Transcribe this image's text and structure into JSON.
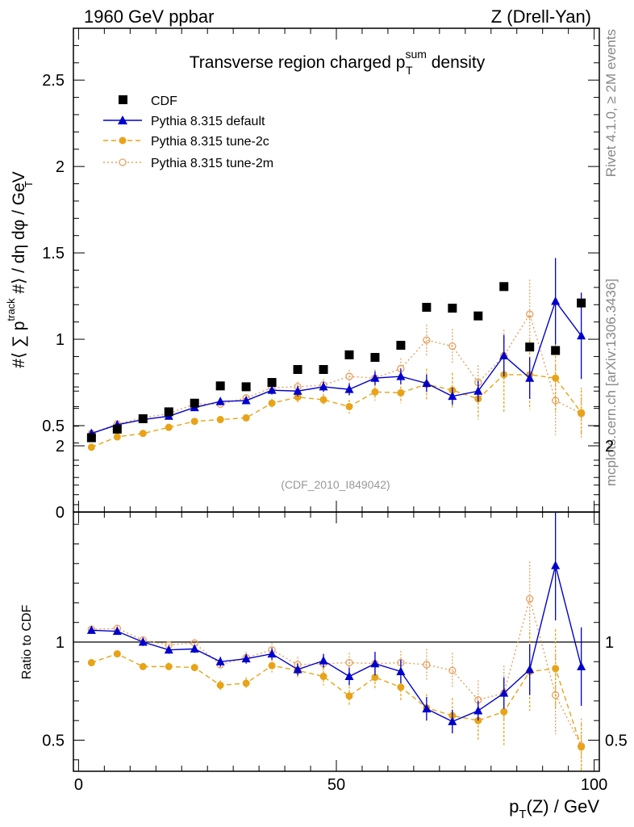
{
  "header": {
    "left": "1960 GeV ppbar",
    "right": "Z (Drell-Yan)"
  },
  "side_labels": {
    "rivet": "Rivet 4.1.0, ≥ 2M events",
    "mcplots": "mcplots.cern.ch [arXiv:1306.3436]"
  },
  "chart_data": [
    {
      "type": "scatter",
      "title": {
        "pre": "Transverse region charged p",
        "sup": "sum",
        "sub": "T",
        "post": " density"
      },
      "ylabel": {
        "p1": "#⟨ ∑ p",
        "sup": "track",
        "sub": "T",
        "p2": " #⟩ / dη dφ / GeV"
      },
      "watermark": "(CDF_2010_I849042)",
      "xlim": [
        -1,
        101
      ],
      "ylim": [
        0,
        2.8
      ],
      "y_ticks": [
        0,
        0.5,
        1,
        1.5,
        2,
        2.5
      ],
      "y_tick_labels": [
        "0",
        "0.5",
        "1",
        "1.5",
        "2",
        "2.5"
      ],
      "x": [
        2.5,
        7.5,
        12.5,
        17.5,
        22.5,
        27.5,
        32.5,
        37.5,
        42.5,
        47.5,
        52.5,
        57.5,
        62.5,
        67.5,
        72.5,
        77.5,
        82.5,
        87.5,
        92.5,
        97.5
      ],
      "series": [
        {
          "name": "CDF",
          "style": "data",
          "color": "#000000",
          "values": [
            0.43,
            0.48,
            0.54,
            0.58,
            0.63,
            0.73,
            0.725,
            0.75,
            0.825,
            0.825,
            0.91,
            0.895,
            0.965,
            1.185,
            1.18,
            1.135,
            1.305,
            0.955,
            0.935,
            1.21
          ],
          "errors": [
            0.01,
            0.01,
            0.01,
            0.01,
            0.01,
            0.01,
            0.01,
            0.01,
            0.01,
            0.01,
            0.01,
            0.01,
            0.01,
            0.01,
            0.01,
            0.01,
            0.01,
            0.01,
            0.01,
            0.01
          ]
        },
        {
          "name": "Pythia 8.315 default",
          "style": "default",
          "color": "#0000cc",
          "values": [
            0.455,
            0.505,
            0.535,
            0.555,
            0.605,
            0.64,
            0.645,
            0.705,
            0.7,
            0.725,
            0.71,
            0.775,
            0.785,
            0.745,
            0.67,
            0.7,
            0.905,
            0.775,
            1.22,
            1.02
          ],
          "errors": [
            0.01,
            0.01,
            0.01,
            0.01,
            0.015,
            0.02,
            0.02,
            0.025,
            0.03,
            0.03,
            0.035,
            0.04,
            0.045,
            0.05,
            0.05,
            0.06,
            0.12,
            0.12,
            0.25,
            0.25
          ]
        },
        {
          "name": "Pythia 8.315 tune-2c",
          "style": "tune2c",
          "color": "#e8a317",
          "values": [
            0.375,
            0.435,
            0.455,
            0.49,
            0.525,
            0.535,
            0.545,
            0.63,
            0.665,
            0.65,
            0.61,
            0.695,
            0.69,
            0.74,
            0.705,
            0.655,
            0.795,
            0.795,
            0.775,
            0.575
          ],
          "errors": [
            0.01,
            0.01,
            0.01,
            0.01,
            0.015,
            0.015,
            0.02,
            0.025,
            0.03,
            0.035,
            0.04,
            0.05,
            0.06,
            0.09,
            0.1,
            0.12,
            0.22,
            0.2,
            0.2,
            0.13
          ]
        },
        {
          "name": "Pythia 8.315 tune-2m",
          "style": "tune2m",
          "color": "#e8a060",
          "values": [
            0.455,
            0.51,
            0.545,
            0.57,
            0.625,
            0.625,
            0.66,
            0.72,
            0.725,
            0.735,
            0.785,
            0.775,
            0.83,
            0.995,
            0.96,
            0.75,
            0.905,
            1.145,
            0.645,
            0.57
          ],
          "errors": [
            0.01,
            0.01,
            0.01,
            0.015,
            0.015,
            0.02,
            0.02,
            0.025,
            0.03,
            0.035,
            0.04,
            0.05,
            0.06,
            0.09,
            0.1,
            0.1,
            0.15,
            0.2,
            0.2,
            0.15
          ]
        }
      ]
    },
    {
      "type": "scatter",
      "ylabel": "Ratio to CDF",
      "xlabel": {
        "p1": "p",
        "sub": "T",
        "p2": "(Z) / GeV"
      },
      "xlim": [
        -1,
        101
      ],
      "ylim": [
        0.35,
        2.35
      ],
      "y_ticks": [
        0.5,
        1,
        2
      ],
      "y_tick_labels": [
        "0.5",
        "1",
        "2"
      ],
      "x_ticks": [
        0,
        50,
        100
      ],
      "x_tick_labels": [
        "0",
        "50",
        "100"
      ],
      "x": [
        2.5,
        7.5,
        12.5,
        17.5,
        22.5,
        27.5,
        32.5,
        37.5,
        42.5,
        47.5,
        52.5,
        57.5,
        62.5,
        67.5,
        72.5,
        77.5,
        82.5,
        87.5,
        92.5,
        97.5
      ],
      "series": [
        {
          "name": "Pythia 8.315 default",
          "style": "default",
          "color": "#0000cc",
          "values": [
            1.06,
            1.055,
            1.0,
            0.96,
            0.965,
            0.9,
            0.915,
            0.94,
            0.86,
            0.905,
            0.825,
            0.89,
            0.85,
            0.66,
            0.595,
            0.65,
            0.74,
            0.86,
            1.39,
            0.875
          ],
          "errors": [
            0.01,
            0.015,
            0.02,
            0.02,
            0.02,
            0.025,
            0.025,
            0.03,
            0.03,
            0.035,
            0.045,
            0.06,
            0.06,
            0.06,
            0.06,
            0.05,
            0.08,
            0.13,
            0.28,
            0.2
          ]
        },
        {
          "name": "Pythia 8.315 tune-2c",
          "style": "tune2c",
          "color": "#e8a317",
          "values": [
            0.895,
            0.94,
            0.875,
            0.875,
            0.87,
            0.78,
            0.79,
            0.88,
            0.855,
            0.825,
            0.725,
            0.82,
            0.77,
            0.665,
            0.625,
            0.6,
            0.645,
            0.85,
            0.865,
            0.465
          ],
          "errors": [
            0.01,
            0.015,
            0.015,
            0.02,
            0.02,
            0.025,
            0.03,
            0.035,
            0.04,
            0.045,
            0.05,
            0.06,
            0.07,
            0.07,
            0.09,
            0.1,
            0.17,
            0.2,
            0.2,
            0.12
          ]
        },
        {
          "name": "Pythia 8.315 tune-2m",
          "style": "tune2m",
          "color": "#e8a060",
          "values": [
            1.065,
            1.07,
            1.01,
            0.985,
            0.995,
            0.885,
            0.92,
            0.96,
            0.885,
            0.89,
            0.895,
            0.89,
            0.895,
            0.885,
            0.855,
            0.705,
            0.74,
            1.22,
            0.73,
            0.47
          ],
          "errors": [
            0.01,
            0.015,
            0.02,
            0.02,
            0.02,
            0.025,
            0.03,
            0.035,
            0.04,
            0.045,
            0.05,
            0.06,
            0.06,
            0.08,
            0.09,
            0.1,
            0.14,
            0.19,
            0.2,
            0.14
          ]
        }
      ]
    }
  ]
}
